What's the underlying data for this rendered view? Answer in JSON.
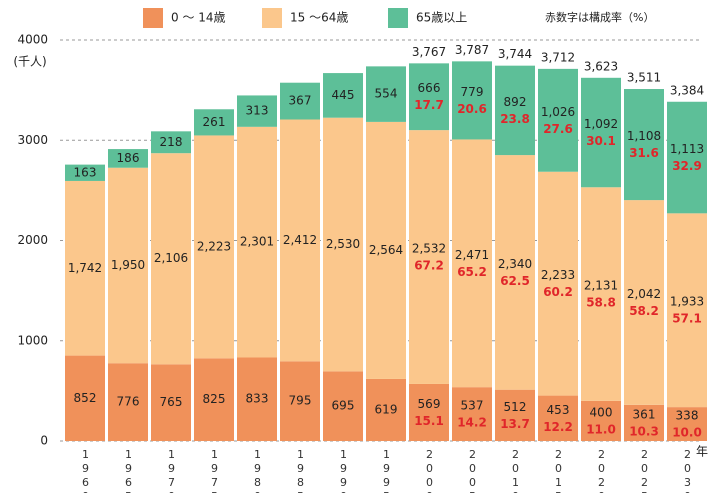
{
  "chart_data": {
    "type": "stacked_bar",
    "y_unit": "(千人)",
    "x_unit": "年",
    "note": "赤数字は構成率（%）",
    "categories": [
      "1960",
      "1965",
      "1970",
      "1975",
      "1980",
      "1985",
      "1990",
      "1995",
      "2000",
      "2005",
      "2010",
      "2015",
      "2020",
      "2025",
      "2030"
    ],
    "ylim": [
      0,
      4000
    ],
    "yticks": [
      0,
      1000,
      2000,
      3000,
      4000
    ],
    "grid": true,
    "legend": "top",
    "series": [
      {
        "name": "0 ～ 14歳",
        "color": "#f0915a",
        "values": [
          852,
          776,
          765,
          825,
          833,
          795,
          695,
          619,
          569,
          537,
          512,
          453,
          400,
          361,
          338
        ],
        "value_labels": [
          "852",
          "776",
          "765",
          "825",
          "833",
          "795",
          "695",
          "619",
          "569",
          "537",
          "512",
          "453",
          "400",
          "361",
          "338"
        ],
        "ratios": {
          "values": [
            null,
            null,
            null,
            null,
            null,
            null,
            null,
            null,
            15.1,
            14.2,
            13.7,
            12.2,
            11.0,
            10.3,
            10.0
          ],
          "value_labels": [
            null,
            null,
            null,
            null,
            null,
            null,
            null,
            null,
            "15.1",
            "14.2",
            "13.7",
            "12.2",
            "11.0",
            "10.3",
            "10.0"
          ]
        }
      },
      {
        "name": "15 ～64歳",
        "color": "#fbc78c",
        "values": [
          1742,
          1950,
          2106,
          2223,
          2301,
          2412,
          2530,
          2564,
          2532,
          2471,
          2340,
          2233,
          2131,
          2042,
          1933
        ],
        "value_labels": [
          "1,742",
          "1,950",
          "2,106",
          "2,223",
          "2,301",
          "2,412",
          "2,530",
          "2,564",
          "2,532",
          "2,471",
          "2,340",
          "2,233",
          "2,131",
          "2,042",
          "1,933"
        ],
        "ratios": {
          "values": [
            null,
            null,
            null,
            null,
            null,
            null,
            null,
            null,
            67.2,
            65.2,
            62.5,
            60.2,
            58.8,
            58.2,
            57.1
          ],
          "value_labels": [
            null,
            null,
            null,
            null,
            null,
            null,
            null,
            null,
            "67.2",
            "65.2",
            "62.5",
            "60.2",
            "58.8",
            "58.2",
            "57.1"
          ]
        }
      },
      {
        "name": "65歳以上",
        "color": "#5dbf98",
        "values": [
          163,
          186,
          218,
          261,
          313,
          367,
          445,
          554,
          666,
          779,
          892,
          1026,
          1092,
          1108,
          1113
        ],
        "value_labels": [
          "163",
          "186",
          "218",
          "261",
          "313",
          "367",
          "445",
          "554",
          "666",
          "779",
          "892",
          "1,026",
          "1,092",
          "1,108",
          "1,113"
        ],
        "ratios": {
          "values": [
            null,
            null,
            null,
            null,
            null,
            null,
            null,
            null,
            17.7,
            20.6,
            23.8,
            27.6,
            30.1,
            31.6,
            32.9
          ],
          "value_labels": [
            null,
            null,
            null,
            null,
            null,
            null,
            null,
            null,
            "17.7",
            "20.6",
            "23.8",
            "27.6",
            "30.1",
            "31.6",
            "32.9"
          ]
        }
      }
    ],
    "totals": {
      "values": [
        null,
        null,
        null,
        null,
        null,
        null,
        null,
        null,
        3767,
        3787,
        3744,
        3712,
        3623,
        3511,
        3384
      ],
      "value_labels": [
        null,
        null,
        null,
        null,
        null,
        null,
        null,
        null,
        "3,767",
        "3,787",
        "3,744",
        "3,712",
        "3,623",
        "3,511",
        "3,384"
      ]
    }
  }
}
